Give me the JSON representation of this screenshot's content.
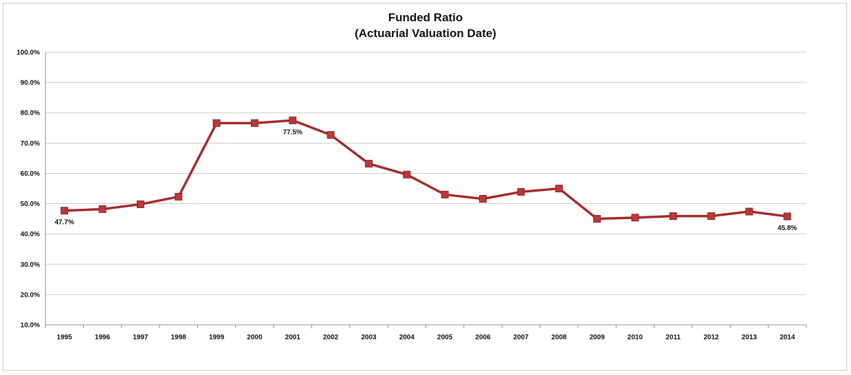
{
  "chart_data": {
    "type": "line",
    "title": "Funded Ratio",
    "subtitle": "(Actuarial Valuation Date)",
    "categories": [
      "1995",
      "1996",
      "1997",
      "1998",
      "1999",
      "2000",
      "2001",
      "2002",
      "2003",
      "2004",
      "2005",
      "2006",
      "2007",
      "2008",
      "2009",
      "2010",
      "2011",
      "2012",
      "2013",
      "2014"
    ],
    "series": [
      {
        "values": [
          47.7,
          48.2,
          49.8,
          52.3,
          76.6,
          76.6,
          77.5,
          72.7,
          63.2,
          59.6,
          53.0,
          51.6,
          53.9,
          55.0,
          45.0,
          45.4,
          45.9,
          45.9,
          47.4,
          45.8
        ]
      }
    ],
    "data_labels": [
      {
        "index": 0,
        "text": "47.7%"
      },
      {
        "index": 6,
        "text": "77.5%"
      },
      {
        "index": 19,
        "text": "45.8%"
      }
    ],
    "yticks": [
      "10.0%",
      "20.0%",
      "30.0%",
      "40.0%",
      "50.0%",
      "60.0%",
      "70.0%",
      "80.0%",
      "90.0%",
      "100.0%"
    ],
    "ylim": [
      10,
      100
    ],
    "grid": true,
    "legend": "none",
    "line_color": "#a52a2a",
    "marker_color": "#b83a3a"
  }
}
